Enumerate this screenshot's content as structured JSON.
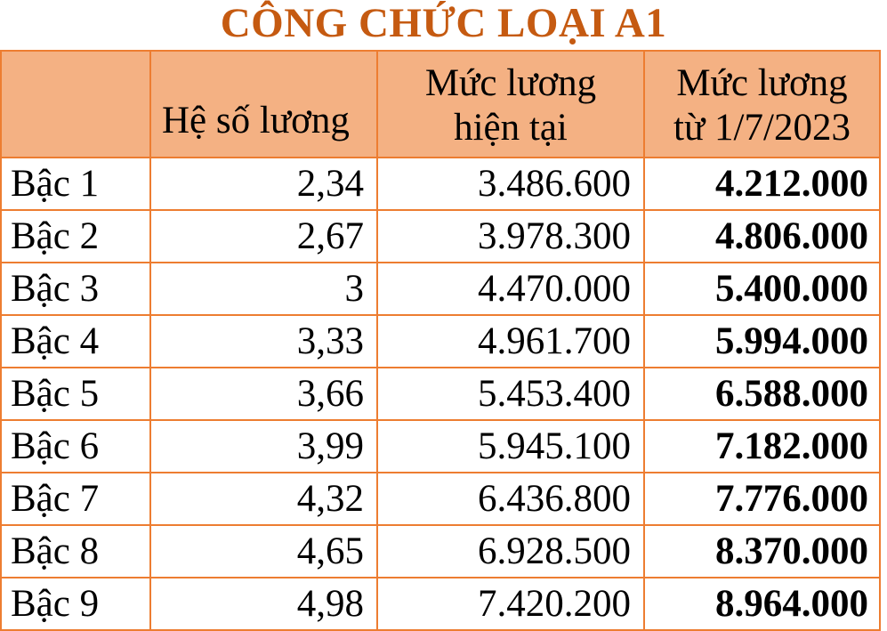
{
  "title": "CÔNG CHỨC LOẠI A1",
  "colors": {
    "title_text": "#C55A11",
    "header_background": "#F4B183",
    "table_border": "#ED7D31",
    "body_text": "#000000",
    "page_background": "#FFFFFF"
  },
  "table": {
    "header": {
      "blank": "",
      "coefficient": "Hệ số lương",
      "current_line1": "Mức lương",
      "current_line2": "hiện tại",
      "new_line1": "Mức lương",
      "new_line2": "từ 1/7/2023"
    },
    "rows": [
      {
        "label": "Bậc 1",
        "coefficient": "2,34",
        "current_salary": "3.486.600",
        "new_salary": "4.212.000"
      },
      {
        "label": "Bậc 2",
        "coefficient": "2,67",
        "current_salary": "3.978.300",
        "new_salary": "4.806.000"
      },
      {
        "label": "Bậc 3",
        "coefficient": "3",
        "current_salary": "4.470.000",
        "new_salary": "5.400.000"
      },
      {
        "label": "Bậc 4",
        "coefficient": "3,33",
        "current_salary": "4.961.700",
        "new_salary": "5.994.000"
      },
      {
        "label": "Bậc 5",
        "coefficient": "3,66",
        "current_salary": "5.453.400",
        "new_salary": "6.588.000"
      },
      {
        "label": "Bậc 6",
        "coefficient": "3,99",
        "current_salary": "5.945.100",
        "new_salary": "7.182.000"
      },
      {
        "label": "Bậc 7",
        "coefficient": "4,32",
        "current_salary": "6.436.800",
        "new_salary": "7.776.000"
      },
      {
        "label": "Bậc 8",
        "coefficient": "4,65",
        "current_salary": "6.928.500",
        "new_salary": "8.370.000"
      },
      {
        "label": "Bậc 9",
        "coefficient": "4,98",
        "current_salary": "7.420.200",
        "new_salary": "8.964.000"
      }
    ]
  }
}
